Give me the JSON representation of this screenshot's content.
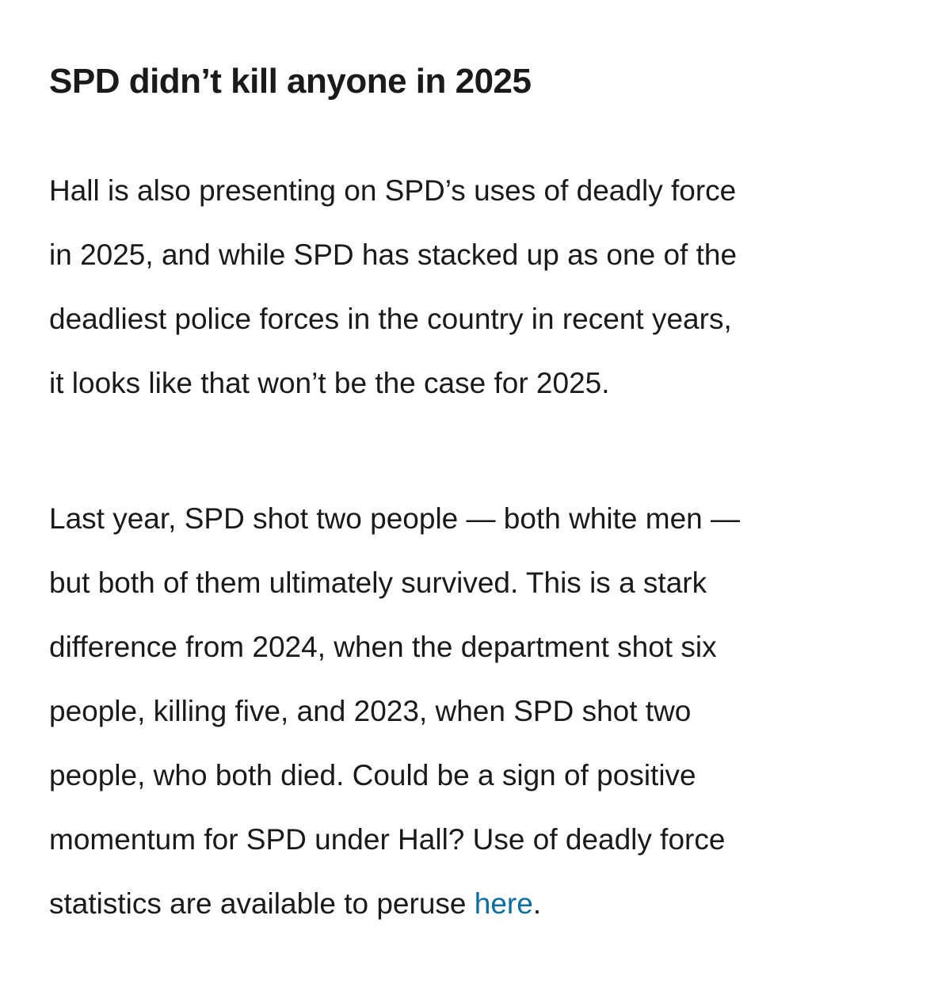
{
  "article": {
    "heading": "SPD didn’t kill anyone in 2025",
    "paragraph1_lines": [
      "Hall is also presenting on SPD’s uses of deadly force",
      "in 2025, and while SPD has stacked up as one of the",
      "deadliest police forces in the country in recent years,",
      "it looks like that won’t be the case for 2025."
    ],
    "paragraph2_lines": [
      "Last year, SPD shot two people — both white men —",
      "but both of them ultimately survived. This is a stark",
      "difference from 2024, when the department shot six",
      "people, killing five, and 2023, when SPD shot two",
      "people, who both died. Could be a sign of positive",
      "momentum for SPD under Hall? Use of deadly force"
    ],
    "paragraph2_last_prefix": "statistics are available to peruse ",
    "link_text": "here",
    "paragraph2_last_suffix": ".",
    "link_color": "#0b6e9e"
  }
}
